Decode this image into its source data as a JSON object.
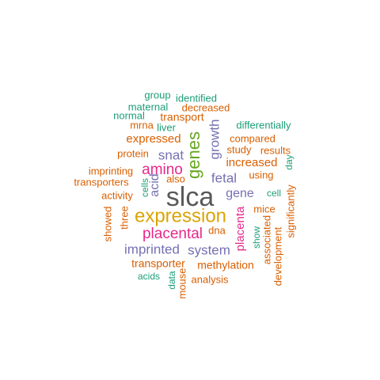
{
  "colors": {
    "gray": "#595959",
    "orange": "#d95f02",
    "green": "#1b9e77",
    "purple": "#7570b3",
    "magenta": "#e7298a",
    "gold": "#d9a404",
    "lime": "#66a61e"
  },
  "words": [
    {
      "text": "slca",
      "color": "gray"
    },
    {
      "text": "expression",
      "color": "gold"
    },
    {
      "text": "genes",
      "color": "lime"
    },
    {
      "text": "placental",
      "color": "magenta"
    },
    {
      "text": "amino",
      "color": "magenta"
    },
    {
      "text": "imprinted",
      "color": "purple"
    },
    {
      "text": "system",
      "color": "purple"
    },
    {
      "text": "growth",
      "color": "purple"
    },
    {
      "text": "fetal",
      "color": "purple"
    },
    {
      "text": "gene",
      "color": "purple"
    },
    {
      "text": "snat",
      "color": "purple"
    },
    {
      "text": "acid",
      "color": "purple"
    },
    {
      "text": "placenta",
      "color": "magenta"
    },
    {
      "text": "expressed",
      "color": "orange"
    },
    {
      "text": "increased",
      "color": "orange"
    },
    {
      "text": "transporter",
      "color": "orange"
    },
    {
      "text": "methylation",
      "color": "orange"
    },
    {
      "text": "transport",
      "color": "orange"
    },
    {
      "text": "decreased",
      "color": "orange"
    },
    {
      "text": "compared",
      "color": "orange"
    },
    {
      "text": "study",
      "color": "orange"
    },
    {
      "text": "results",
      "color": "orange"
    },
    {
      "text": "protein",
      "color": "orange"
    },
    {
      "text": "imprinting",
      "color": "orange"
    },
    {
      "text": "transporters",
      "color": "orange"
    },
    {
      "text": "activity",
      "color": "orange"
    },
    {
      "text": "also",
      "color": "orange"
    },
    {
      "text": "using",
      "color": "orange"
    },
    {
      "text": "mice",
      "color": "orange"
    },
    {
      "text": "dna",
      "color": "orange"
    },
    {
      "text": "analysis",
      "color": "orange"
    },
    {
      "text": "mrna",
      "color": "orange"
    },
    {
      "text": "identified",
      "color": "green"
    },
    {
      "text": "group",
      "color": "green"
    },
    {
      "text": "maternal",
      "color": "green"
    },
    {
      "text": "normal",
      "color": "green"
    },
    {
      "text": "liver",
      "color": "green"
    },
    {
      "text": "differentially",
      "color": "green"
    },
    {
      "text": "cell",
      "color": "green"
    },
    {
      "text": "acids",
      "color": "green"
    },
    {
      "text": "day",
      "color": "green"
    },
    {
      "text": "show",
      "color": "green"
    },
    {
      "text": "data",
      "color": "green"
    },
    {
      "text": "cells",
      "color": "green"
    },
    {
      "text": "showed",
      "color": "orange"
    },
    {
      "text": "three",
      "color": "orange"
    },
    {
      "text": "associated",
      "color": "orange"
    },
    {
      "text": "development",
      "color": "orange"
    },
    {
      "text": "significantly",
      "color": "orange"
    },
    {
      "text": "mouse",
      "color": "orange"
    }
  ]
}
